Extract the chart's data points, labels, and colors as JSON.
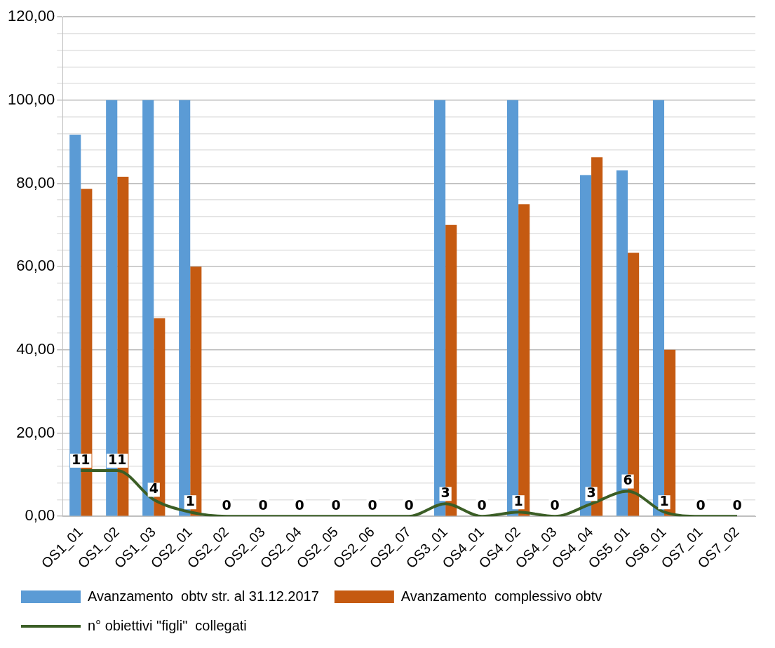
{
  "chart_data": {
    "type": "bar",
    "categories": [
      "OS1_01",
      "OS1_02",
      "OS1_03",
      "OS2_01",
      "OS2_02",
      "OS2_03",
      "OS2_04",
      "OS2_05",
      "OS2_06",
      "OS2_07",
      "OS3_01",
      "OS4_01",
      "OS4_02",
      "OS4_03",
      "OS4_04",
      "OS5_01",
      "OS6_01",
      "OS7_01",
      "OS7_02"
    ],
    "series": [
      {
        "name": "Avanzamento  obtv str. al 31.12.2017",
        "color": "#5b9bd5",
        "values": [
          91.7,
          100,
          100,
          100,
          null,
          null,
          null,
          null,
          null,
          null,
          100,
          null,
          100,
          null,
          82,
          83.1,
          100,
          null,
          null
        ]
      },
      {
        "name": "Avanzamento  complessivo obtv",
        "color": "#c55a11",
        "values": [
          78.7,
          81.6,
          47.6,
          60,
          null,
          null,
          null,
          null,
          null,
          null,
          70,
          null,
          75,
          null,
          86.3,
          63.3,
          40,
          null,
          null
        ]
      },
      {
        "name": "n° obiettivi \"figli\"  collegati",
        "type": "line",
        "color": "#3b5e26",
        "marker": "none",
        "line_style": "solid",
        "values": [
          11,
          11,
          4,
          1,
          0,
          0,
          0,
          0,
          0,
          0,
          3,
          0,
          1,
          0,
          3,
          6,
          1,
          0,
          0
        ],
        "value_labels": [
          "11",
          "11",
          "4",
          "1",
          "0",
          "0",
          "0",
          "0",
          "0",
          "0",
          "3",
          "0",
          "1",
          "0",
          "3",
          "6",
          "1",
          "0",
          "0"
        ]
      }
    ],
    "ylim": [
      0,
      120
    ],
    "yticks": [
      {
        "value": 0,
        "label": "0,00"
      },
      {
        "value": 4,
        "label": null
      },
      {
        "value": 8,
        "label": null
      },
      {
        "value": 12,
        "label": null
      },
      {
        "value": 16,
        "label": null
      },
      {
        "value": 20,
        "label": "20,00"
      },
      {
        "value": 24,
        "label": null
      },
      {
        "value": 28,
        "label": null
      },
      {
        "value": 32,
        "label": null
      },
      {
        "value": 36,
        "label": null
      },
      {
        "value": 40,
        "label": "40,00"
      },
      {
        "value": 44,
        "label": null
      },
      {
        "value": 48,
        "label": null
      },
      {
        "value": 52,
        "label": null
      },
      {
        "value": 56,
        "label": null
      },
      {
        "value": 60,
        "label": "60,00"
      },
      {
        "value": 64,
        "label": null
      },
      {
        "value": 68,
        "label": null
      },
      {
        "value": 72,
        "label": null
      },
      {
        "value": 76,
        "label": null
      },
      {
        "value": 80,
        "label": "80,00"
      },
      {
        "value": 84,
        "label": null
      },
      {
        "value": 88,
        "label": null
      },
      {
        "value": 92,
        "label": null
      },
      {
        "value": 96,
        "label": null
      },
      {
        "value": 100,
        "label": "100,00"
      },
      {
        "value": 104,
        "label": null
      },
      {
        "value": 108,
        "label": null
      },
      {
        "value": 112,
        "label": null
      },
      {
        "value": 116,
        "label": null
      },
      {
        "value": 120,
        "label": "120,00"
      }
    ],
    "grid": "y",
    "legend": "bottom"
  }
}
